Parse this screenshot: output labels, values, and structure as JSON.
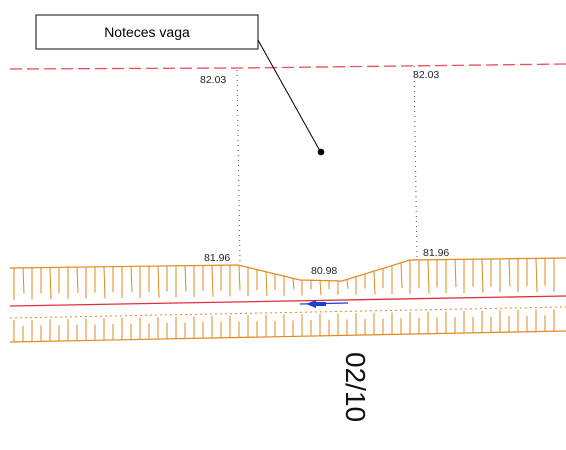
{
  "callout": {
    "text": "Noteces vaga"
  },
  "levels": {
    "top_left": "82.03",
    "top_right": "82.03",
    "bank_left": "81.96",
    "bank_right": "81.96",
    "ditch_bottom": "80.98"
  },
  "chainage": {
    "text": "02/10"
  },
  "colors": {
    "design_level_line": "#e8505b",
    "road_axis": "#e0303a",
    "slope_hatching": "#e08a1e",
    "flow_arrow": "#1f3fd6",
    "leader_line": "#000000"
  },
  "icons": {
    "flow_arrow": "flow-direction-arrow-icon",
    "leader_dot": "leader-dot-icon"
  }
}
